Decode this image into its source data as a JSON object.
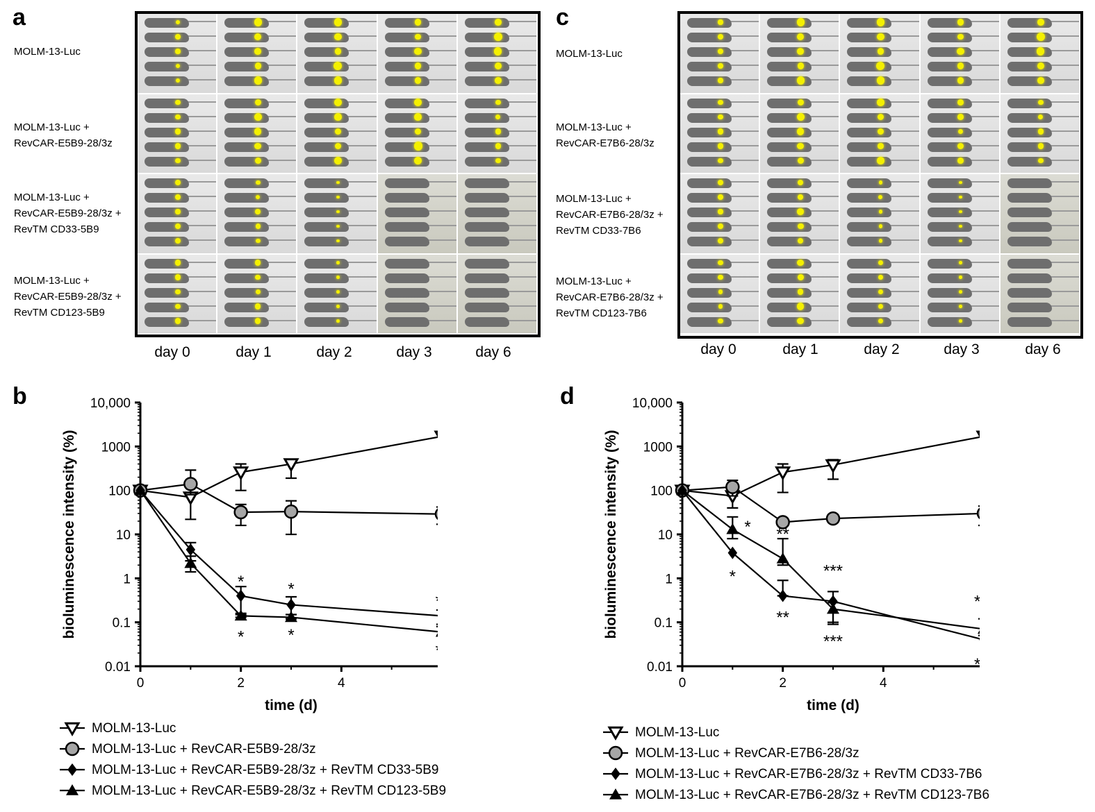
{
  "panels": {
    "a": {
      "letter": "a",
      "rows": [
        "MOLM-13-Luc",
        "MOLM-13-Luc +\nRevCAR-E5B9-28/3z",
        "MOLM-13-Luc +\nRevCAR-E5B9-28/3z +\nRevTM CD33-5B9",
        "MOLM-13-Luc +\nRevCAR-E5B9-28/3z +\nRevTM CD123-5B9"
      ],
      "days": [
        "day 0",
        "day 1",
        "day 2",
        "day 3",
        "day 6"
      ],
      "signal": [
        [
          0.4,
          0.8,
          0.9,
          0.7,
          0.9
        ],
        [
          0.5,
          0.8,
          0.8,
          0.9,
          0.5
        ],
        [
          0.5,
          0.4,
          0.1,
          0.0,
          0.0
        ],
        [
          0.5,
          0.5,
          0.05,
          0.0,
          0.0
        ]
      ]
    },
    "c": {
      "letter": "c",
      "rows": [
        "MOLM-13-Luc",
        "MOLM-13-Luc +\nRevCAR-E7B6-28/3z",
        "MOLM-13-Luc +\nRevCAR-E7B6-28/3z +\nRevTM CD33-7B6",
        "MOLM-13-Luc +\nRevCAR-E7B6-28/3z +\nRevTM CD123-7B6"
      ],
      "days": [
        "day 0",
        "day 1",
        "day 2",
        "day 3",
        "day 6"
      ],
      "signal": [
        [
          0.5,
          0.8,
          0.9,
          0.7,
          0.9
        ],
        [
          0.5,
          0.8,
          0.7,
          0.6,
          0.5
        ],
        [
          0.5,
          0.6,
          0.2,
          0.1,
          0.0
        ],
        [
          0.4,
          0.7,
          0.4,
          0.05,
          0.0
        ]
      ]
    },
    "b": {
      "letter": "b"
    },
    "d": {
      "letter": "d"
    }
  },
  "colors": {
    "gray_marker": "#a6a6a6",
    "yellow_signal": "#f4f000",
    "mouse": "#6e6e6e"
  },
  "chart_data": [
    {
      "panel": "b",
      "type": "line",
      "xlabel": "time (d)",
      "ylabel": "bioluminescence intensity (%)",
      "log_y": true,
      "xlim": [
        0,
        6
      ],
      "ylim": [
        0.01,
        10000
      ],
      "x_ticks": [
        "0",
        "2",
        "4",
        "6"
      ],
      "y_ticks": [
        "0.01",
        "0.1",
        "1",
        "10",
        "100",
        "1000",
        "10,000"
      ],
      "series": [
        {
          "name": "MOLM-13-Luc",
          "marker": "triangle-down-open",
          "x": [
            0,
            1,
            2,
            3,
            6
          ],
          "y": [
            100,
            70,
            260,
            400,
            1700
          ],
          "err_low": [
            100,
            22,
            100,
            190,
            1700
          ],
          "err_high": [
            100,
            120,
            400,
            500,
            1700
          ]
        },
        {
          "name": "MOLM-13-Luc + RevCAR-E5B9-28/3z",
          "marker": "circle-gray",
          "x": [
            0,
            1,
            2,
            3,
            6
          ],
          "y": [
            100,
            140,
            32,
            33,
            29
          ],
          "err_low": [
            100,
            80,
            16,
            10,
            17
          ],
          "err_high": [
            100,
            290,
            48,
            58,
            42
          ]
        },
        {
          "name": "MOLM-13-Luc + RevCAR-E5B9-28/3z + RevTM CD33-5B9",
          "marker": "diamond",
          "x": [
            0,
            1,
            2,
            3,
            6
          ],
          "y": [
            100,
            4.5,
            0.4,
            0.25,
            0.14
          ],
          "err_low": [
            100,
            2.5,
            0.15,
            0.15,
            0.09
          ],
          "err_high": [
            100,
            6.5,
            0.65,
            0.38,
            0.19
          ]
        },
        {
          "name": "MOLM-13-Luc + RevCAR-E5B9-28/3z + RevTM CD123-5B9",
          "marker": "triangle-up",
          "x": [
            0,
            1,
            2,
            3,
            6
          ],
          "y": [
            100,
            2.2,
            0.14,
            0.13,
            0.06
          ],
          "err_low": [
            100,
            1.4,
            0.13,
            0.12,
            0.05
          ],
          "err_high": [
            100,
            3.2,
            0.16,
            0.15,
            0.08
          ]
        }
      ],
      "annotations": [
        {
          "x": 2,
          "y": 0.9,
          "text": "*"
        },
        {
          "x": 2,
          "y": 0.05,
          "text": "*"
        },
        {
          "x": 3,
          "y": 0.62,
          "text": "*"
        },
        {
          "x": 3,
          "y": 0.055,
          "text": "*"
        },
        {
          "x": 6,
          "y": 0.33,
          "text": "**"
        },
        {
          "x": 6,
          "y": 0.025,
          "text": "**"
        }
      ]
    },
    {
      "panel": "d",
      "type": "line",
      "xlabel": "time (d)",
      "ylabel": "bioluminescence intensity (%)",
      "log_y": true,
      "xlim": [
        0,
        6
      ],
      "ylim": [
        0.01,
        10000
      ],
      "x_ticks": [
        "0",
        "2",
        "4",
        "6"
      ],
      "y_ticks": [
        "0.01",
        "0.1",
        "1",
        "10",
        "100",
        "1000",
        "10,000"
      ],
      "series": [
        {
          "name": "MOLM-13-Luc",
          "marker": "triangle-down-open",
          "x": [
            0,
            1,
            2,
            3,
            6
          ],
          "y": [
            100,
            75,
            260,
            380,
            1700
          ],
          "err_low": [
            100,
            40,
            90,
            180,
            1700
          ],
          "err_high": [
            100,
            110,
            400,
            500,
            1700
          ]
        },
        {
          "name": "MOLM-13-Luc + RevCAR-E7B6-28/3z",
          "marker": "circle-gray",
          "x": [
            0,
            1,
            2,
            3,
            6
          ],
          "y": [
            100,
            120,
            19,
            23,
            30
          ],
          "err_low": [
            100,
            75,
            19,
            23,
            16
          ],
          "err_high": [
            100,
            170,
            19,
            23,
            44
          ]
        },
        {
          "name": "MOLM-13-Luc + RevCAR-E7B6-28/3z + RevTM CD33-7B6",
          "marker": "diamond",
          "x": [
            0,
            1,
            2,
            3,
            6
          ],
          "y": [
            100,
            3.8,
            0.4,
            0.3,
            0.04
          ],
          "err_low": [
            100,
            3.8,
            0.4,
            0.1,
            0.04
          ],
          "err_high": [
            100,
            3.8,
            0.9,
            0.5,
            0.04
          ]
        },
        {
          "name": "MOLM-13-Luc + RevCAR-E7B6-28/3z + RevTM CD123-7B6",
          "marker": "triangle-up",
          "x": [
            0,
            1,
            2,
            3,
            6
          ],
          "y": [
            100,
            13,
            2.8,
            0.2,
            0.07
          ],
          "err_low": [
            100,
            8,
            2.0,
            0.09,
            0.05
          ],
          "err_high": [
            100,
            25,
            8,
            0.28,
            0.12
          ]
        }
      ],
      "annotations": [
        {
          "x": 1.3,
          "y": 16,
          "text": "*"
        },
        {
          "x": 1,
          "y": 1.2,
          "text": "*"
        },
        {
          "x": 2,
          "y": 11,
          "text": "**"
        },
        {
          "x": 2,
          "y": 0.14,
          "text": "**"
        },
        {
          "x": 3,
          "y": 1.6,
          "text": "***"
        },
        {
          "x": 3,
          "y": 0.04,
          "text": "***"
        },
        {
          "x": 6,
          "y": 0.32,
          "text": "***"
        },
        {
          "x": 6,
          "y": 0.012,
          "text": "***"
        }
      ]
    }
  ]
}
